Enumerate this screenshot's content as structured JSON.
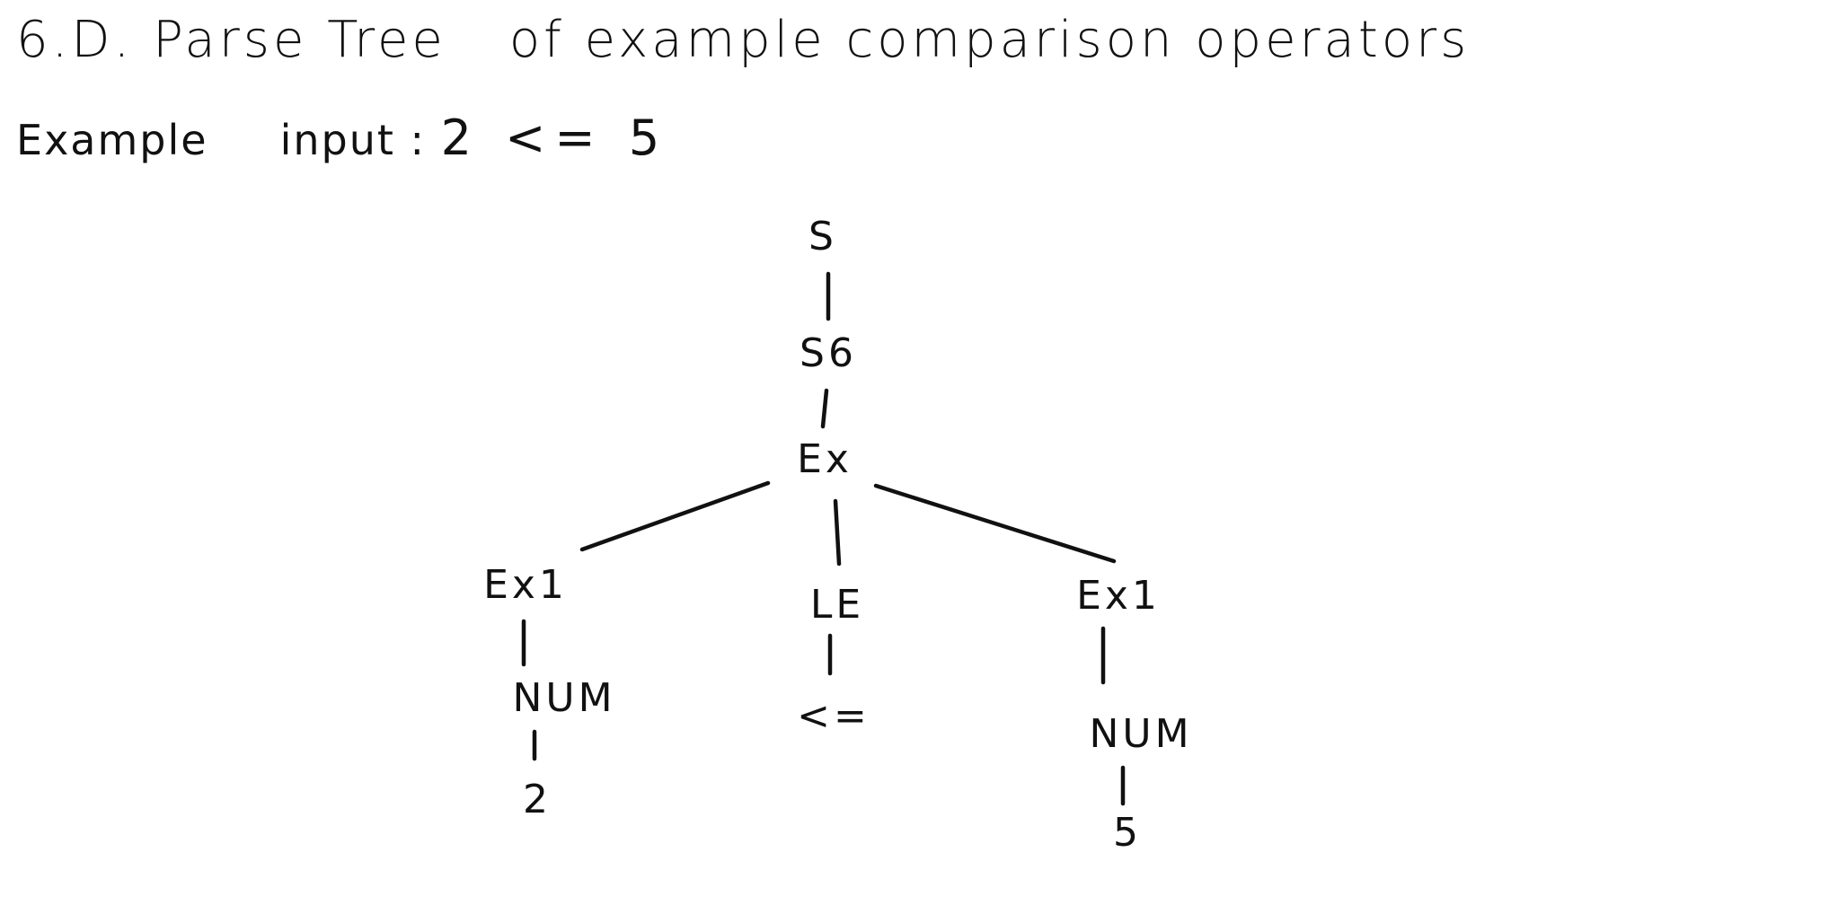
{
  "heading": {
    "section_number": "6.D.",
    "title_part1": "Parse Tree",
    "title_part2": "of example comparison operators"
  },
  "example_input": {
    "label": "Example",
    "label2": "input :",
    "value": "2 <= 5"
  },
  "tree": {
    "nodes": {
      "root": "S",
      "s6": "S6",
      "ex": "Ex",
      "ex1_left": "Ex1",
      "le": "LE",
      "ex1_right": "Ex1",
      "num_left": "NUM",
      "le_token": "<=",
      "num_right": "NUM",
      "leaf_left": "2",
      "leaf_right": "5"
    }
  }
}
